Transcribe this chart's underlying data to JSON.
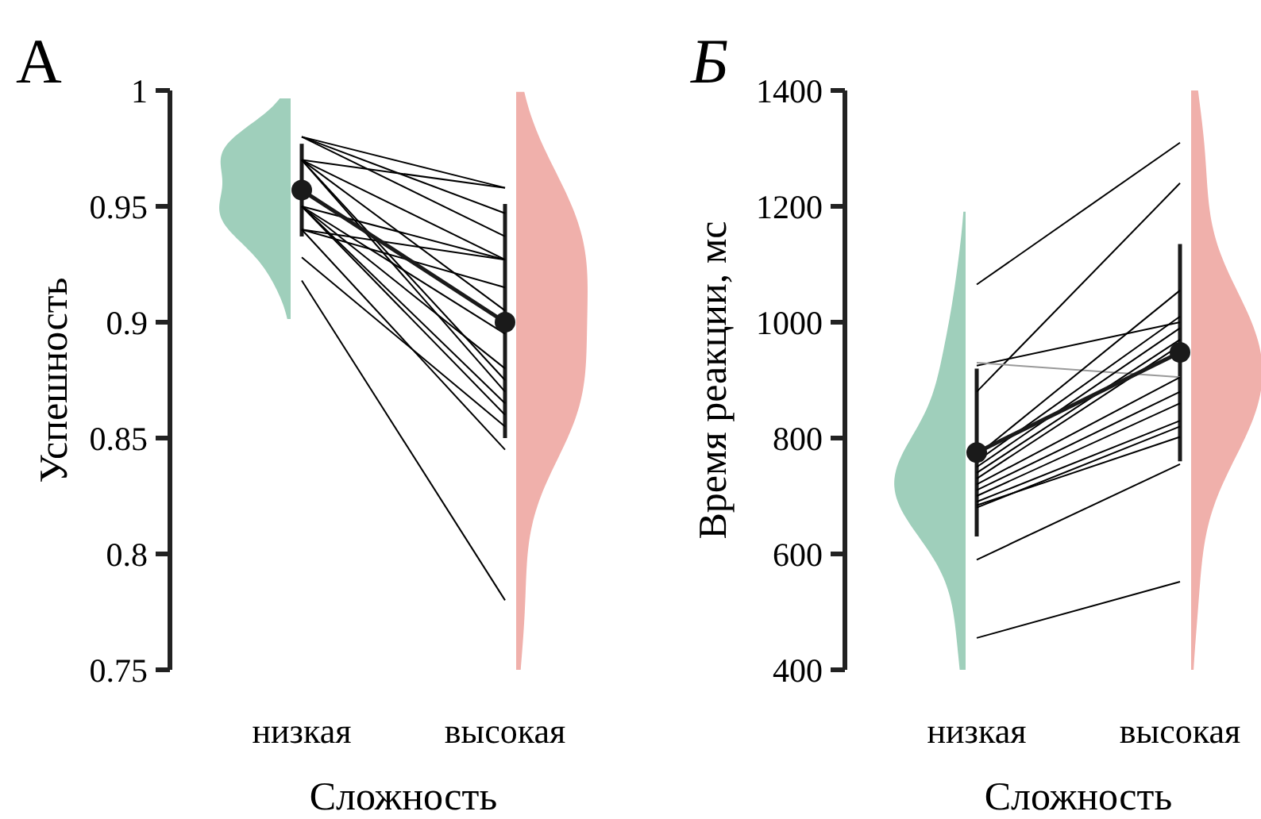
{
  "chart_data": [
    {
      "type": "line",
      "title": "А",
      "xlabel": "Сложность",
      "ylabel": "Успешность",
      "categories": [
        "низкая",
        "высокая"
      ],
      "colors": [
        "#9fcfbb",
        "#f0b0ab"
      ],
      "ylim": [
        0.75,
        1
      ],
      "yticks": [
        0.75,
        0.8,
        0.85,
        0.9,
        0.95,
        1
      ],
      "series": [
        {
          "color": "#000000",
          "values": [
            0.98,
            0.958
          ]
        },
        {
          "color": "#000000",
          "values": [
            0.98,
            0.947
          ]
        },
        {
          "color": "#000000",
          "values": [
            0.98,
            0.937
          ]
        },
        {
          "color": "#000000",
          "values": [
            0.97,
            0.958
          ]
        },
        {
          "color": "#000000",
          "values": [
            0.97,
            0.927
          ]
        },
        {
          "color": "#000000",
          "values": [
            0.97,
            0.905
          ]
        },
        {
          "color": "#000000",
          "values": [
            0.97,
            0.875
          ]
        },
        {
          "color": "#000000",
          "values": [
            0.97,
            0.87
          ]
        },
        {
          "color": "#000000",
          "values": [
            0.95,
            0.927
          ]
        },
        {
          "color": "#000000",
          "values": [
            0.95,
            0.895
          ]
        },
        {
          "color": "#000000",
          "values": [
            0.95,
            0.88
          ]
        },
        {
          "color": "#000000",
          "values": [
            0.95,
            0.865
          ]
        },
        {
          "color": "#000000",
          "values": [
            0.95,
            0.86
          ]
        },
        {
          "color": "#000000",
          "values": [
            0.94,
            0.927
          ]
        },
        {
          "color": "#000000",
          "values": [
            0.94,
            0.915
          ]
        },
        {
          "color": "#000000",
          "values": [
            0.94,
            0.845
          ]
        },
        {
          "color": "#000000",
          "values": [
            0.928,
            0.855
          ]
        },
        {
          "color": "#000000",
          "values": [
            0.918,
            0.78
          ]
        },
        {
          "color": "#1a1a1a",
          "marker": "circle",
          "values": [
            0.957,
            0.9
          ],
          "errors": [
            [
              0.937,
              0.977
            ],
            [
              0.85,
              0.951
            ]
          ]
        }
      ]
    },
    {
      "type": "line",
      "title": "Б",
      "xlabel": "Сложность",
      "ylabel": "Время реакции, мс",
      "categories": [
        "низкая",
        "высокая"
      ],
      "colors": [
        "#9fcfbb",
        "#f0b0ab"
      ],
      "ylim": [
        400,
        1400
      ],
      "yticks": [
        400,
        600,
        800,
        1000,
        1200,
        1400
      ],
      "series": [
        {
          "color": "#000000",
          "values": [
            1065,
            1310
          ]
        },
        {
          "color": "#000000",
          "values": [
            880,
            1240
          ]
        },
        {
          "color": "#000000",
          "values": [
            925,
            1000
          ]
        },
        {
          "color": "#999999",
          "values": [
            930,
            905
          ]
        },
        {
          "color": "#000000",
          "values": [
            770,
            1055
          ]
        },
        {
          "color": "#000000",
          "values": [
            760,
            1010
          ]
        },
        {
          "color": "#000000",
          "values": [
            750,
            990
          ]
        },
        {
          "color": "#000000",
          "values": [
            740,
            970
          ]
        },
        {
          "color": "#000000",
          "values": [
            730,
            960
          ]
        },
        {
          "color": "#000000",
          "values": [
            720,
            905
          ]
        },
        {
          "color": "#000000",
          "values": [
            710,
            880
          ]
        },
        {
          "color": "#000000",
          "values": [
            700,
            860
          ]
        },
        {
          "color": "#000000",
          "values": [
            690,
            830
          ]
        },
        {
          "color": "#000000",
          "values": [
            684,
            802
          ]
        },
        {
          "color": "#000000",
          "values": [
            680,
            820
          ]
        },
        {
          "color": "#000000",
          "values": [
            590,
            755
          ]
        },
        {
          "color": "#000000",
          "values": [
            455,
            552
          ]
        },
        {
          "color": "#1a1a1a",
          "marker": "circle",
          "values": [
            775,
            948
          ],
          "errors": [
            [
              630,
              920
            ],
            [
              760,
              1135
            ]
          ]
        }
      ]
    }
  ]
}
